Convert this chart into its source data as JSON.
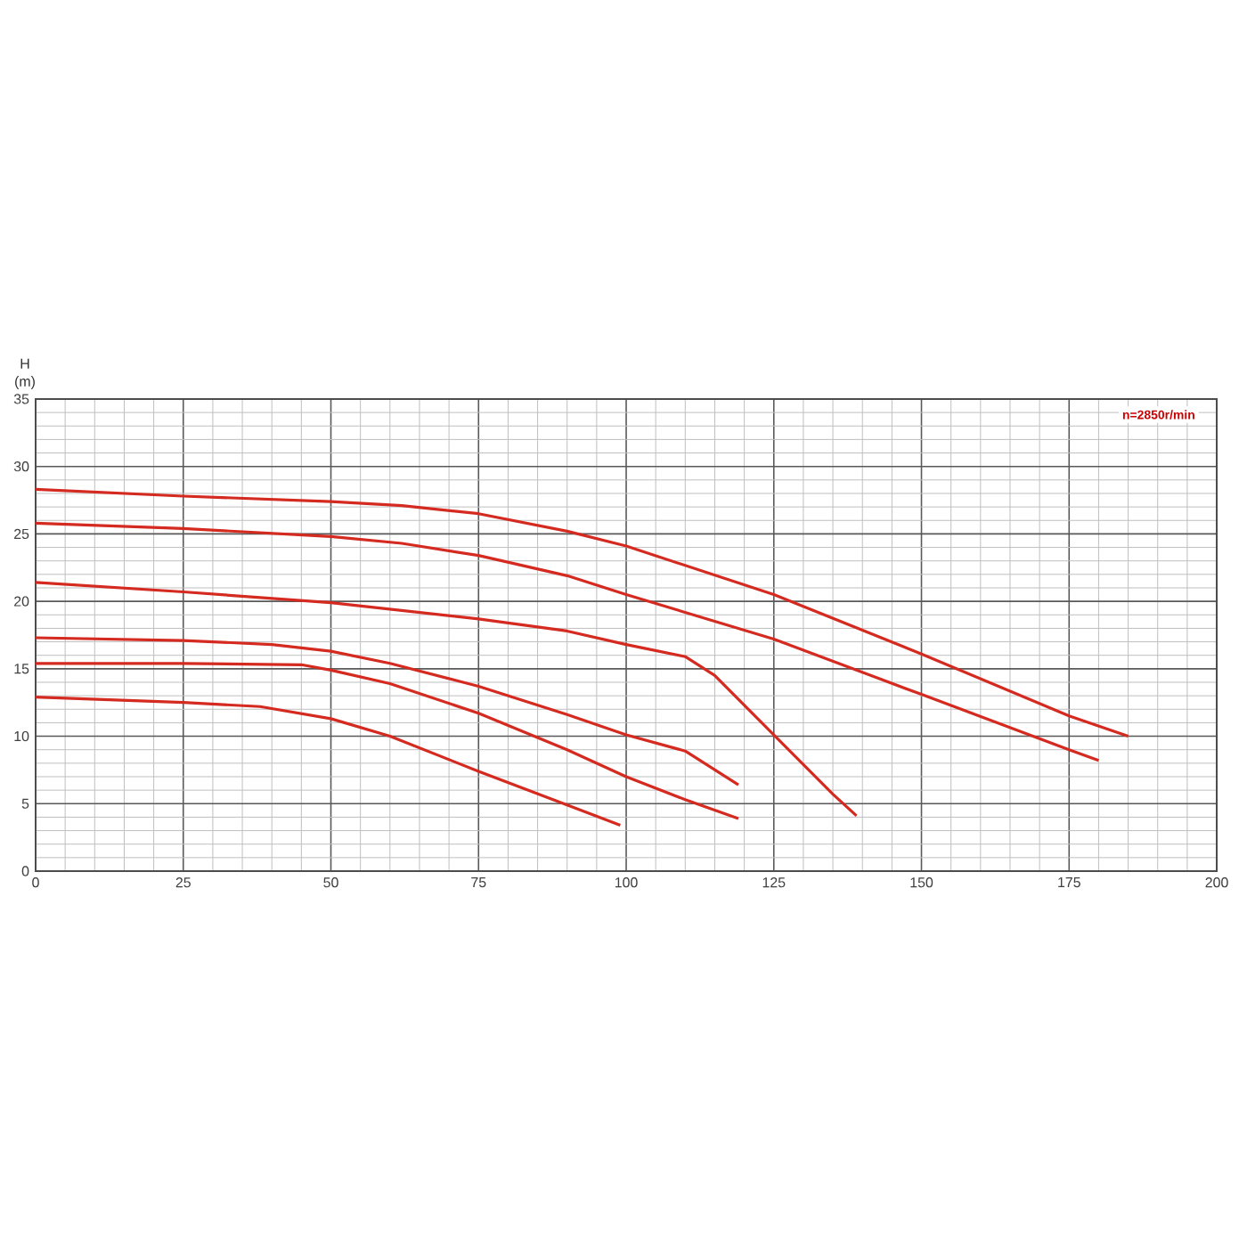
{
  "chart_data": {
    "type": "line",
    "ylabel": "H (m)",
    "xlim": [
      0,
      200
    ],
    "xticks": [
      0,
      25,
      50,
      75,
      100,
      125,
      150,
      175,
      200
    ],
    "ylim": [
      0,
      35
    ],
    "yticks": [
      0,
      5,
      10,
      15,
      20,
      25,
      30,
      35
    ],
    "grid": true,
    "marker": "none",
    "line_style": "solid",
    "annotations": [
      "n=2850r/min"
    ],
    "series": [
      {
        "color": "#d42a20",
        "x": [
          0,
          25,
          50,
          62,
          75,
          90,
          100,
          125,
          150,
          175,
          185
        ],
        "values": [
          28.3,
          27.8,
          27.4,
          27.1,
          26.5,
          25.2,
          24.1,
          20.5,
          16.1,
          11.5,
          10.0
        ]
      },
      {
        "color": "#d42a20",
        "x": [
          0,
          25,
          50,
          62,
          75,
          90,
          100,
          125,
          150,
          175,
          180
        ],
        "values": [
          25.8,
          25.4,
          24.8,
          24.3,
          23.4,
          21.9,
          20.5,
          17.2,
          13.1,
          9.0,
          8.2
        ]
      },
      {
        "color": "#d42a20",
        "x": [
          0,
          25,
          50,
          75,
          90,
          100,
          110,
          115,
          120,
          125,
          130,
          135,
          139
        ],
        "values": [
          21.4,
          20.7,
          19.9,
          18.7,
          17.8,
          16.8,
          15.9,
          14.5,
          12.3,
          10.1,
          7.9,
          5.7,
          4.1
        ]
      },
      {
        "color": "#d42a20",
        "x": [
          0,
          25,
          40,
          50,
          60,
          75,
          90,
          100,
          110,
          119
        ],
        "values": [
          17.3,
          17.1,
          16.8,
          16.3,
          15.4,
          13.7,
          11.6,
          10.1,
          8.9,
          6.4
        ]
      },
      {
        "color": "#d42a20",
        "x": [
          0,
          25,
          45,
          50,
          60,
          75,
          90,
          100,
          110,
          119
        ],
        "values": [
          15.4,
          15.4,
          15.3,
          14.9,
          13.9,
          11.7,
          9.0,
          7.0,
          5.3,
          3.9
        ]
      },
      {
        "color": "#d42a20",
        "x": [
          0,
          25,
          38,
          50,
          60,
          75,
          90,
          99
        ],
        "values": [
          12.9,
          12.5,
          12.2,
          11.3,
          10.0,
          7.4,
          4.9,
          3.4
        ]
      }
    ]
  }
}
